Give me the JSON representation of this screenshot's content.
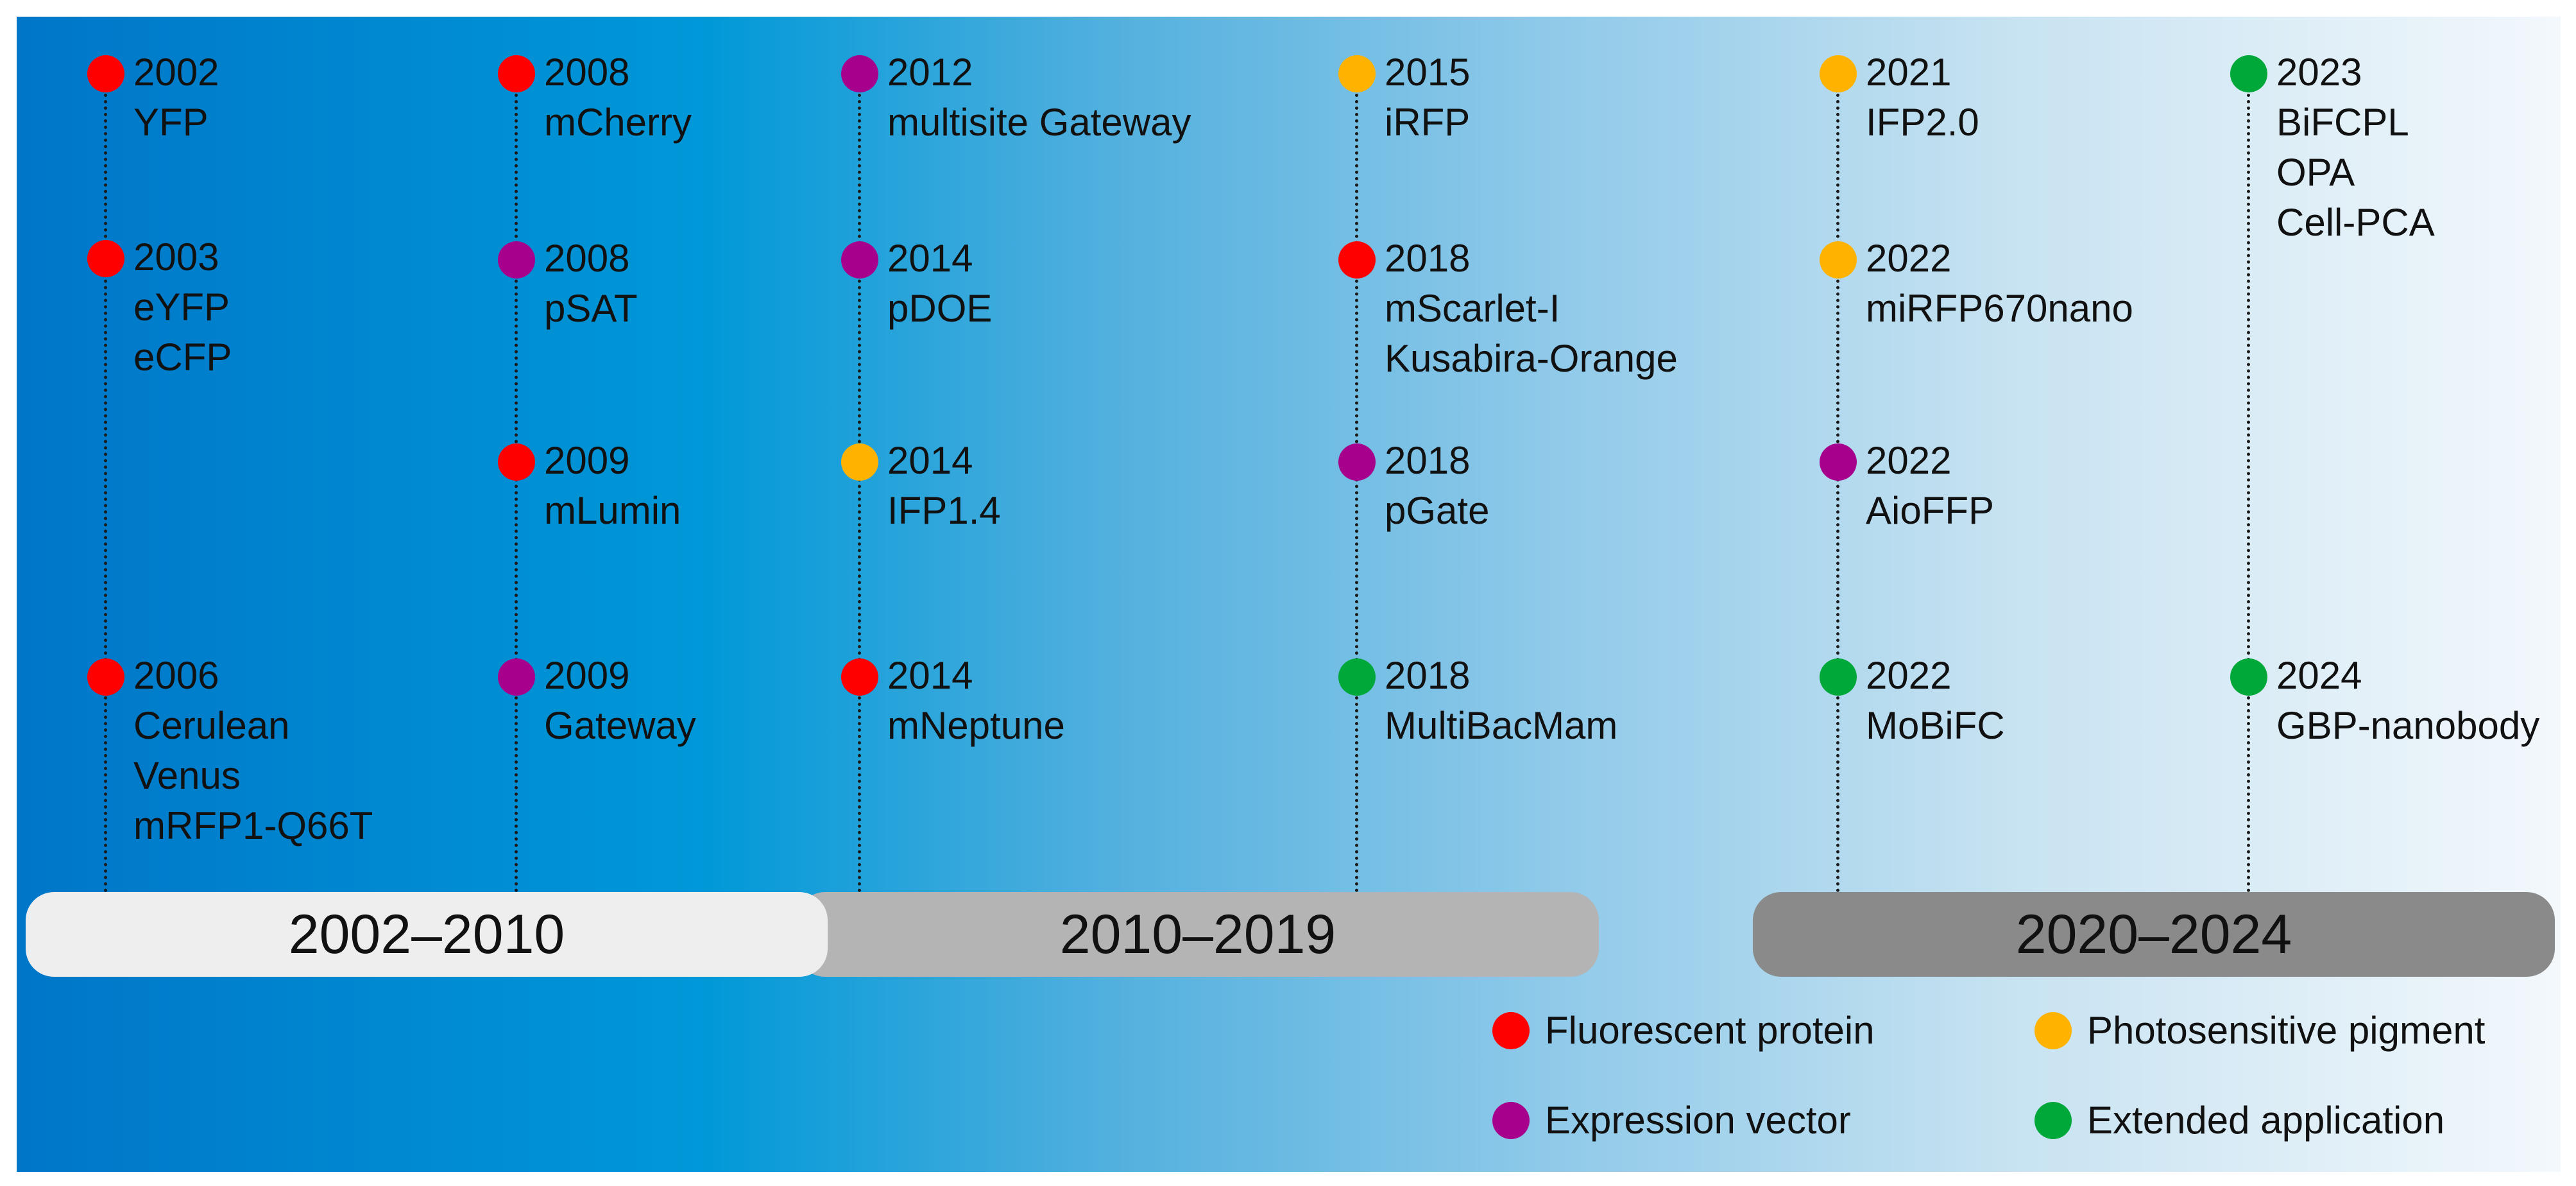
{
  "colors": {
    "fluorescent_protein": "#ff0000",
    "photosensitive_pigment": "#ffb300",
    "expression_vector": "#a6008c",
    "extended_application": "#00a83a"
  },
  "columns": [
    {
      "events": [
        {
          "year": "2002",
          "names": [
            "YFP"
          ],
          "category": "fluorescent_protein"
        },
        {
          "year": "2003",
          "names": [
            "eYFP",
            "eCFP"
          ],
          "category": "fluorescent_protein"
        },
        {
          "year": "2006",
          "names": [
            "Cerulean",
            "Venus",
            "mRFP1-Q66T"
          ],
          "category": "fluorescent_protein"
        }
      ]
    },
    {
      "events": [
        {
          "year": "2008",
          "names": [
            "mCherry"
          ],
          "category": "fluorescent_protein"
        },
        {
          "year": "2008",
          "names": [
            "pSAT"
          ],
          "category": "expression_vector"
        },
        {
          "year": "2009",
          "names": [
            "mLumin"
          ],
          "category": "fluorescent_protein"
        },
        {
          "year": "2009",
          "names": [
            "Gateway"
          ],
          "category": "expression_vector"
        }
      ]
    },
    {
      "events": [
        {
          "year": "2012",
          "names": [
            "multisite Gateway"
          ],
          "category": "expression_vector"
        },
        {
          "year": "2014",
          "names": [
            "pDOE"
          ],
          "category": "expression_vector"
        },
        {
          "year": "2014",
          "names": [
            "IFP1.4"
          ],
          "category": "photosensitive_pigment"
        },
        {
          "year": "2014",
          "names": [
            "mNeptune"
          ],
          "category": "fluorescent_protein"
        }
      ]
    },
    {
      "events": [
        {
          "year": "2015",
          "names": [
            "iRFP"
          ],
          "category": "photosensitive_pigment"
        },
        {
          "year": "2018",
          "names": [
            "mScarlet-I",
            "Kusabira-Orange"
          ],
          "category": "fluorescent_protein"
        },
        {
          "year": "2018",
          "names": [
            "pGate"
          ],
          "category": "expression_vector"
        },
        {
          "year": "2018",
          "names": [
            "MultiBacMam"
          ],
          "category": "extended_application"
        }
      ]
    },
    {
      "events": [
        {
          "year": "2021",
          "names": [
            "IFP2.0"
          ],
          "category": "photosensitive_pigment"
        },
        {
          "year": "2022",
          "names": [
            "miRFP670nano"
          ],
          "category": "photosensitive_pigment"
        },
        {
          "year": "2022",
          "names": [
            "AioFFP"
          ],
          "category": "expression_vector"
        },
        {
          "year": "2022",
          "names": [
            "MoBiFC"
          ],
          "category": "extended_application"
        }
      ]
    },
    {
      "events": [
        {
          "year": "2023",
          "names": [
            "BiFCPL",
            "OPA",
            "Cell-PCA"
          ],
          "category": "extended_application"
        },
        {
          "year": "2024",
          "names": [
            "GBP-nanobody"
          ],
          "category": "extended_application"
        }
      ]
    }
  ],
  "periods": [
    "2002–2010",
    "2010–2019",
    "2020–2024"
  ],
  "legend": [
    {
      "label": "Fluorescent protein",
      "category": "fluorescent_protein"
    },
    {
      "label": "Photosensitive pigment",
      "category": "photosensitive_pigment"
    },
    {
      "label": "Expression vector",
      "category": "expression_vector"
    },
    {
      "label": "Extended application",
      "category": "extended_application"
    }
  ]
}
